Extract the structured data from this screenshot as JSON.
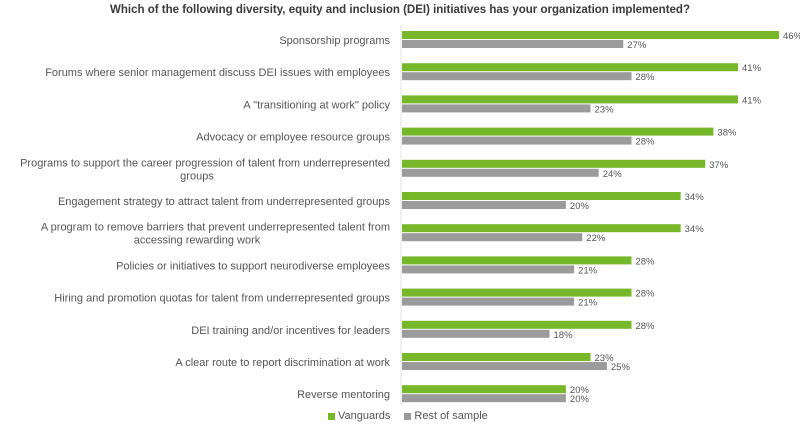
{
  "chart_data": {
    "type": "bar",
    "orientation": "horizontal",
    "title": "Which of the following diversity, equity and inclusion (DEI) initiatives has your organization implemented?",
    "xlabel": "",
    "ylabel": "",
    "xlim": [
      0,
      46
    ],
    "grid": false,
    "legend_position": "bottom",
    "categories": [
      [
        "Sponsorship programs"
      ],
      [
        "Forums where senior management discuss DEI issues with employees"
      ],
      [
        "A \"transitioning at work\" policy"
      ],
      [
        "Advocacy or employee resource groups"
      ],
      [
        "Programs to support the career progression of talent from underrepresented",
        "groups"
      ],
      [
        "Engagement strategy to attract talent from underrepresented groups"
      ],
      [
        "A program to remove barriers that prevent underrepresented talent from",
        "accessing rewarding work"
      ],
      [
        "Policies or initiatives to support neurodiverse employees"
      ],
      [
        "Hiring and promotion quotas for talent from underrepresented groups"
      ],
      [
        "DEI training and/or incentives for leaders"
      ],
      [
        "A clear route to report discrimination at work"
      ],
      [
        "Reverse mentoring"
      ]
    ],
    "series": [
      {
        "name": "Vanguards",
        "color": "#76b82a",
        "values": [
          46,
          41,
          41,
          38,
          37,
          34,
          34,
          28,
          28,
          28,
          23,
          20
        ]
      },
      {
        "name": "Rest of sample",
        "color": "#9b9b9b",
        "values": [
          27,
          28,
          23,
          28,
          24,
          20,
          22,
          21,
          21,
          18,
          25,
          20
        ]
      }
    ],
    "value_suffix": "%"
  }
}
